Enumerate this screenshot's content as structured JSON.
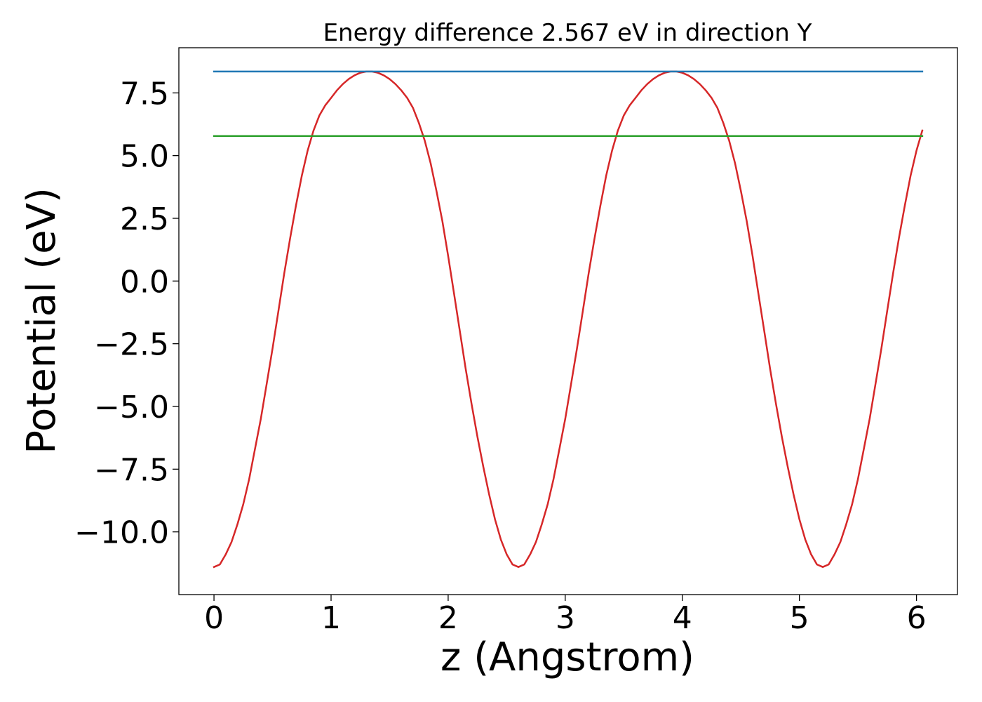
{
  "chart_data": {
    "type": "line",
    "title": "Energy difference 2.567 eV in direction Y",
    "xlabel": "z (Angstrom)",
    "ylabel": "Potential (eV)",
    "xlim": [
      -0.3,
      6.35
    ],
    "ylim": [
      -12.5,
      9.3
    ],
    "x_ticks": [
      0,
      1,
      2,
      3,
      4,
      5,
      6
    ],
    "x_tick_labels": [
      "0",
      "1",
      "2",
      "3",
      "4",
      "5",
      "6"
    ],
    "y_ticks": [
      7.5,
      5.0,
      2.5,
      0.0,
      -2.5,
      -5.0,
      -7.5,
      -10.0
    ],
    "y_tick_labels": [
      "7.5",
      "5.0",
      "2.5",
      "0.0",
      "−2.5",
      "−5.0",
      "−7.5",
      "−10.0"
    ],
    "grid": false,
    "legend": "none",
    "series": [
      {
        "color": "#d62728",
        "x": [
          0.0,
          0.05,
          0.1,
          0.15,
          0.2,
          0.25,
          0.3,
          0.35,
          0.4,
          0.45,
          0.5,
          0.55,
          0.6,
          0.65,
          0.7,
          0.75,
          0.8,
          0.85,
          0.9,
          0.95,
          1.0,
          1.05,
          1.1,
          1.15,
          1.2,
          1.25,
          1.3,
          1.35,
          1.4,
          1.45,
          1.5,
          1.55,
          1.6,
          1.65,
          1.7,
          1.75,
          1.8,
          1.85,
          1.9,
          1.95,
          2.0,
          2.05,
          2.1,
          2.15,
          2.2,
          2.25,
          2.3,
          2.35,
          2.4,
          2.45,
          2.5,
          2.55,
          2.6,
          2.65,
          2.7,
          2.75,
          2.8,
          2.85,
          2.9,
          2.95,
          3.0,
          3.05,
          3.1,
          3.15,
          3.2,
          3.25,
          3.3,
          3.35,
          3.4,
          3.45,
          3.5,
          3.55,
          3.6,
          3.65,
          3.7,
          3.75,
          3.8,
          3.85,
          3.9,
          3.95,
          4.0,
          4.05,
          4.1,
          4.15,
          4.2,
          4.25,
          4.3,
          4.35,
          4.4,
          4.45,
          4.5,
          4.55,
          4.6,
          4.65,
          4.7,
          4.75,
          4.8,
          4.85,
          4.9,
          4.95,
          5.0,
          5.05,
          5.1,
          5.15,
          5.2,
          5.25,
          5.3,
          5.35,
          5.4,
          5.45,
          5.5,
          5.55,
          5.6,
          5.65,
          5.7,
          5.75,
          5.8,
          5.85,
          5.9,
          5.95,
          6.0,
          6.05
        ],
        "y": [
          -11.4,
          -11.3,
          -10.9,
          -10.4,
          -9.7,
          -8.9,
          -7.9,
          -6.7,
          -5.5,
          -4.1,
          -2.7,
          -1.2,
          0.3,
          1.7,
          3.0,
          4.2,
          5.2,
          6.0,
          6.6,
          7.0,
          7.3,
          7.6,
          7.85,
          8.05,
          8.2,
          8.3,
          8.35,
          8.35,
          8.3,
          8.2,
          8.05,
          7.85,
          7.6,
          7.3,
          6.9,
          6.3,
          5.6,
          4.7,
          3.6,
          2.4,
          1.0,
          -0.5,
          -2.0,
          -3.5,
          -4.9,
          -6.2,
          -7.4,
          -8.5,
          -9.5,
          -10.3,
          -10.9,
          -11.3,
          -11.4,
          -11.3,
          -10.9,
          -10.4,
          -9.7,
          -8.9,
          -7.9,
          -6.7,
          -5.5,
          -4.1,
          -2.7,
          -1.2,
          0.3,
          1.7,
          3.0,
          4.2,
          5.2,
          6.0,
          6.6,
          7.0,
          7.3,
          7.6,
          7.85,
          8.05,
          8.2,
          8.3,
          8.35,
          8.35,
          8.3,
          8.2,
          8.05,
          7.85,
          7.6,
          7.3,
          6.9,
          6.3,
          5.6,
          4.7,
          3.6,
          2.4,
          1.0,
          -0.5,
          -2.0,
          -3.5,
          -4.9,
          -6.2,
          -7.4,
          -8.5,
          -9.5,
          -10.3,
          -10.9,
          -11.3,
          -11.4,
          -11.3,
          -10.9,
          -10.4,
          -9.7,
          -8.9,
          -7.9,
          -6.7,
          -5.5,
          -4.1,
          -2.7,
          -1.2,
          0.3,
          1.7,
          3.0,
          4.2,
          5.2,
          6.0
        ]
      },
      {
        "color": "#1f77b4",
        "x": [
          0.0,
          6.05
        ],
        "y": [
          8.35,
          8.35
        ]
      },
      {
        "color": "#2ca02c",
        "x": [
          0.0,
          6.05
        ],
        "y": [
          5.78,
          5.78
        ]
      }
    ]
  }
}
